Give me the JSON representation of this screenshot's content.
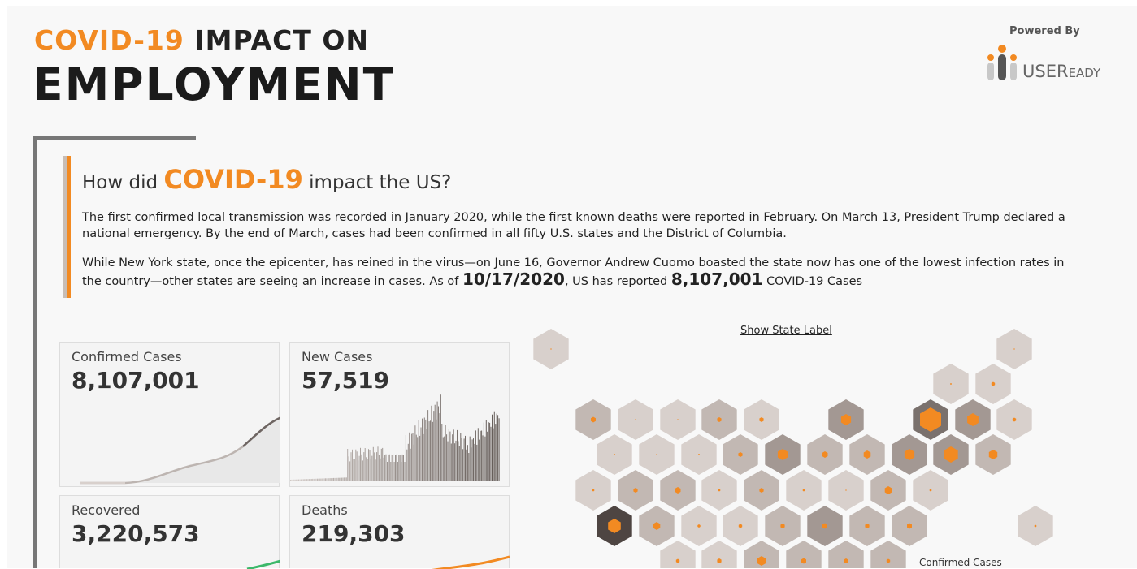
{
  "header": {
    "title_highlight": "COVID-19",
    "title_rest": "IMPACT ON",
    "title_line2": "EMPLOYMENT"
  },
  "branding": {
    "powered_by": "Powered By",
    "logo_main": "USER",
    "logo_small": "EADY"
  },
  "intro": {
    "heading_pre": "How did",
    "heading_highlight": "COVID-19",
    "heading_post": "impact the US?",
    "para1": "The first confirmed local transmission was recorded in January 2020, while the first known deaths were reported in February. On March 13, President Trump declared a national emergency. By the end of March, cases had been confirmed in all fifty U.S. states and the District of Columbia.",
    "para2_pre": "While New York state, once the epicenter, has reined in the virus—on June 16, Governor Andrew Cuomo boasted the state now has one of the lowest infection rates in the country—other states are seeing an increase in cases. As of",
    "date": "10/17/2020",
    "para2_mid": ", US has reported",
    "total": "8,107,001",
    "para2_post": "COVID-19 Cases"
  },
  "kpis": {
    "confirmed": {
      "label": "Confirmed Cases",
      "value": "8,107,001"
    },
    "new_cases": {
      "label": "New Cases",
      "value": "57,519"
    },
    "recovered": {
      "label": "Recovered",
      "value": "3,220,573"
    },
    "deaths": {
      "label": "Deaths",
      "value": "219,303"
    }
  },
  "map": {
    "show_label": "Show State Label",
    "legend_title": "Confirmed Cases"
  },
  "colors": {
    "accent": "#f28a22",
    "hex_light": "#d8d0cc",
    "hex_mid": "#c2b8b3",
    "hex_dark": "#a39893",
    "hex_darker": "#7a716d",
    "hex_darkest": "#4e4542"
  }
}
